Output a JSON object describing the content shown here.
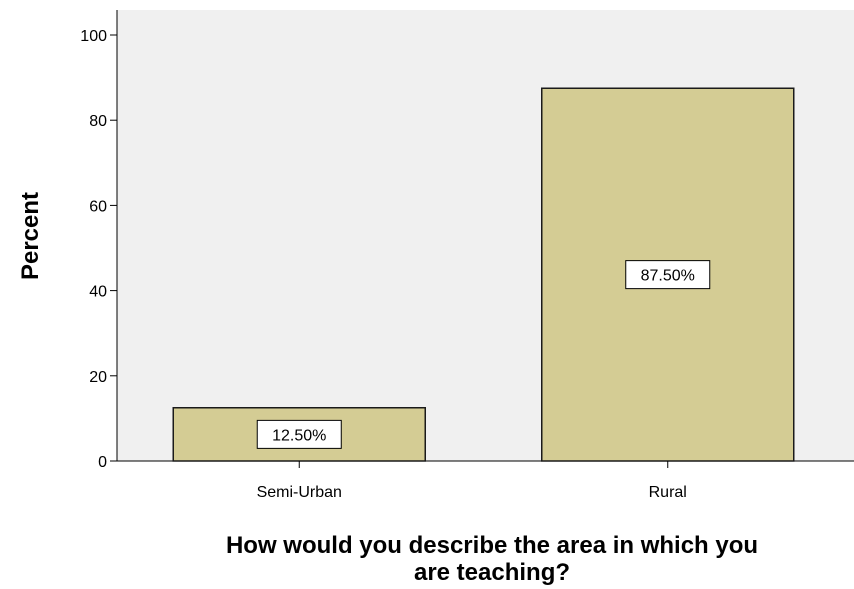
{
  "chart_data": {
    "type": "bar",
    "title": "",
    "categories": [
      "Semi-Urban",
      "Rural"
    ],
    "values": [
      12.5,
      87.5
    ],
    "data_labels": [
      "12.50%",
      "87.50%"
    ],
    "xlabel_lines": [
      "How would you describe the area in which you",
      "are teaching?"
    ],
    "ylabel": "Percent",
    "ylim": [
      0,
      100
    ],
    "yticks": [
      0,
      20,
      40,
      60,
      80,
      100
    ],
    "grid": false,
    "legend": "none",
    "colors": {
      "plot_background": "#f0f0f0",
      "bar_fill": "#d4cc94",
      "bar_stroke": "#1a1a1a",
      "label_box_fill": "#ffffff"
    }
  }
}
